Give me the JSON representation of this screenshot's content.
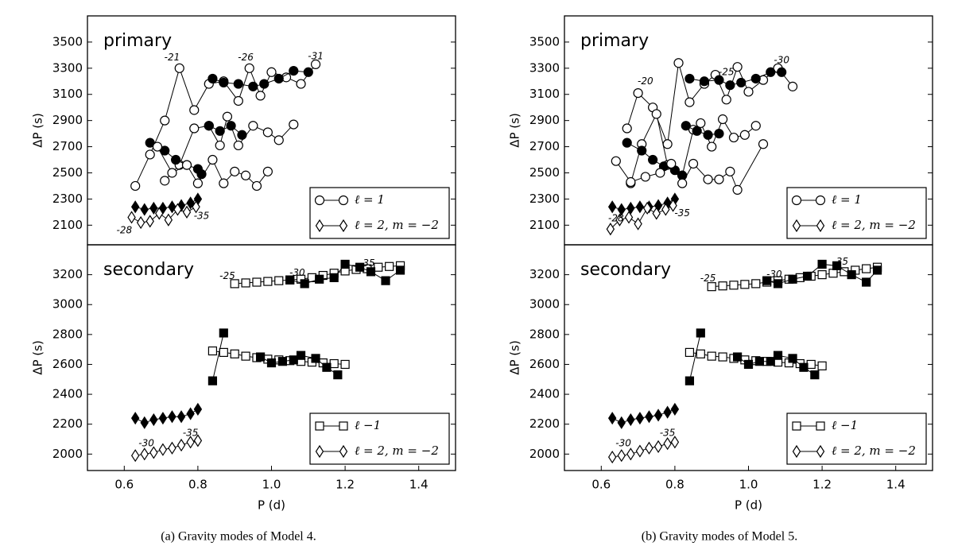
{
  "captions": [
    "(a) Gravity modes of Model 4.",
    "(b) Gravity modes of Model 5."
  ],
  "chart_data": [
    {
      "type": "line",
      "title": "primary",
      "ylabel": "ΔP (s)",
      "xlim": [
        0.5,
        1.5
      ],
      "ylim": [
        1950,
        3700
      ],
      "yticks": [
        2100,
        2300,
        2500,
        2700,
        2900,
        3100,
        3300,
        3500
      ],
      "legend": {
        "corner": "lower right",
        "entries": [
          {
            "label": "ℓ = 1",
            "marker": "circle"
          },
          {
            "label": "ℓ = 2, m = −2",
            "marker": "diamond"
          }
        ]
      },
      "series": [
        {
          "marker": "circle",
          "filled": false,
          "color": "#000",
          "x": [
            0.63,
            0.67,
            0.71,
            0.75,
            0.79,
            0.83,
            0.87,
            0.91,
            0.94,
            0.97,
            1.0,
            1.04,
            1.08,
            1.12
          ],
          "values": [
            2400,
            2640,
            2900,
            3300,
            2980,
            3180,
            3200,
            3050,
            3300,
            3090,
            3270,
            3230,
            3180,
            3330
          ]
        },
        {
          "marker": "circle",
          "filled": true,
          "color": "#000",
          "x": [
            0.84,
            0.87,
            0.91,
            0.95,
            0.98,
            1.02,
            1.06,
            1.1
          ],
          "values": [
            3220,
            3190,
            3180,
            3160,
            3180,
            3220,
            3280,
            3270
          ]
        },
        {
          "marker": "circle",
          "filled": false,
          "color": "#000",
          "x": [
            0.71,
            0.75,
            0.79,
            0.83,
            0.86,
            0.88,
            0.91,
            0.95,
            0.99,
            1.02,
            1.06
          ],
          "values": [
            2440,
            2560,
            2840,
            2860,
            2710,
            2930,
            2710,
            2860,
            2810,
            2750,
            2870
          ]
        },
        {
          "marker": "circle",
          "filled": true,
          "color": "#000",
          "x": [
            0.67,
            0.71,
            0.74,
            0.77,
            0.8,
            0.81
          ],
          "values": [
            2730,
            2670,
            2600,
            2560,
            2530,
            2490
          ]
        },
        {
          "marker": "circle",
          "filled": true,
          "color": "#000",
          "x": [
            0.83,
            0.86,
            0.89,
            0.92
          ],
          "values": [
            2860,
            2820,
            2860,
            2790
          ]
        },
        {
          "marker": "circle",
          "filled": false,
          "color": "#000",
          "x": [
            0.69,
            0.73,
            0.77,
            0.8,
            0.84,
            0.87,
            0.9,
            0.93,
            0.96,
            0.99
          ],
          "values": [
            2700,
            2500,
            2560,
            2420,
            2600,
            2420,
            2510,
            2480,
            2400,
            2510
          ]
        },
        {
          "marker": "diamond",
          "filled": true,
          "color": "#000",
          "x": [
            0.63,
            0.655,
            0.68,
            0.705,
            0.73,
            0.755,
            0.78,
            0.8
          ],
          "values": [
            2240,
            2220,
            2230,
            2230,
            2240,
            2250,
            2270,
            2300
          ]
        },
        {
          "marker": "diamond",
          "filled": false,
          "color": "#000",
          "x": [
            0.62,
            0.645,
            0.67,
            0.695,
            0.72,
            0.745,
            0.77,
            0.795
          ],
          "values": [
            2160,
            2120,
            2130,
            2190,
            2140,
            2220,
            2200,
            2240
          ]
        }
      ],
      "annotations": [
        {
          "text": "-21",
          "x": 0.73,
          "y": 3380
        },
        {
          "text": "-26",
          "x": 0.93,
          "y": 3380
        },
        {
          "text": "-31",
          "x": 1.12,
          "y": 3390
        },
        {
          "text": "-28",
          "x": 0.6,
          "y": 2060
        },
        {
          "text": "-35",
          "x": 0.81,
          "y": 2170
        }
      ]
    },
    {
      "type": "line",
      "title": "secondary",
      "ylabel": "ΔP (s)",
      "xlabel": "P (d)",
      "xlim": [
        0.5,
        1.5
      ],
      "ylim": [
        1890,
        3400
      ],
      "xticks": [
        0.6,
        0.8,
        {
          "value": 1,
          "label": "1.0"
        },
        1.2,
        1.4
      ],
      "yticks": [
        2000,
        2200,
        2400,
        2600,
        2800,
        3000,
        3200
      ],
      "legend": {
        "corner": "lower right",
        "entries": [
          {
            "label": "ℓ −1",
            "marker": "square"
          },
          {
            "label": "ℓ = 2, m = −2",
            "marker": "diamond"
          }
        ]
      },
      "series": [
        {
          "marker": "square",
          "filled": false,
          "color": "#000",
          "x": [
            0.9,
            0.93,
            0.96,
            0.99,
            1.02,
            1.05,
            1.08,
            1.11,
            1.14,
            1.17,
            1.2,
            1.23,
            1.26,
            1.29,
            1.32,
            1.35
          ],
          "values": [
            3140,
            3145,
            3150,
            3155,
            3160,
            3165,
            3170,
            3180,
            3195,
            3210,
            3225,
            3235,
            3240,
            3250,
            3255,
            3260
          ]
        },
        {
          "marker": "square",
          "filled": true,
          "color": "#000",
          "x": [
            1.05,
            1.09,
            1.13,
            1.17,
            1.2,
            1.24,
            1.27,
            1.31,
            1.35
          ],
          "values": [
            3165,
            3140,
            3170,
            3180,
            3270,
            3250,
            3220,
            3160,
            3230
          ]
        },
        {
          "marker": "square",
          "filled": false,
          "color": "#000",
          "x": [
            0.84,
            0.87,
            0.9,
            0.93,
            0.96,
            0.99,
            1.02,
            1.05,
            1.08,
            1.11,
            1.14,
            1.17,
            1.2
          ],
          "values": [
            2690,
            2680,
            2670,
            2655,
            2645,
            2635,
            2630,
            2625,
            2620,
            2615,
            2610,
            2605,
            2600
          ]
        },
        {
          "marker": "square",
          "filled": true,
          "color": "#000",
          "x": [
            0.84,
            0.87
          ],
          "values": [
            2490,
            2810
          ]
        },
        {
          "marker": "square",
          "filled": true,
          "color": "#000",
          "x": [
            0.97,
            1.0,
            1.03,
            1.06,
            1.08,
            1.12,
            1.15,
            1.18
          ],
          "values": [
            2650,
            2610,
            2620,
            2630,
            2660,
            2640,
            2580,
            2530
          ]
        },
        {
          "marker": "diamond",
          "filled": true,
          "color": "#000",
          "x": [
            0.63,
            0.655,
            0.68,
            0.705,
            0.73,
            0.755,
            0.78,
            0.8
          ],
          "values": [
            2240,
            2210,
            2230,
            2240,
            2250,
            2250,
            2270,
            2300
          ]
        },
        {
          "marker": "diamond",
          "filled": false,
          "color": "#000",
          "x": [
            0.63,
            0.655,
            0.68,
            0.705,
            0.73,
            0.755,
            0.78,
            0.8
          ],
          "values": [
            1990,
            2000,
            2010,
            2030,
            2040,
            2060,
            2080,
            2090
          ]
        }
      ],
      "annotations": [
        {
          "text": "-25",
          "x": 0.88,
          "y": 3190
        },
        {
          "text": "-30",
          "x": 1.07,
          "y": 3210
        },
        {
          "text": "-35",
          "x": 1.26,
          "y": 3275
        },
        {
          "text": "-30",
          "x": 0.66,
          "y": 2070
        },
        {
          "text": "-35",
          "x": 0.78,
          "y": 2140
        }
      ]
    },
    {
      "type": "line",
      "title": "primary",
      "ylabel": "ΔP (s)",
      "xlim": [
        0.5,
        1.5
      ],
      "ylim": [
        1950,
        3700
      ],
      "yticks": [
        2100,
        2300,
        2500,
        2700,
        2900,
        3100,
        3300,
        3500
      ],
      "legend": {
        "corner": "lower right",
        "entries": [
          {
            "label": "ℓ = 1",
            "marker": "circle"
          },
          {
            "label": "ℓ = 2, m = −2",
            "marker": "diamond"
          }
        ]
      },
      "series": [
        {
          "marker": "circle",
          "filled": false,
          "color": "#000",
          "x": [
            0.67,
            0.7,
            0.74,
            0.78,
            0.81,
            0.84,
            0.88,
            0.91,
            0.94,
            0.97,
            1.0,
            1.04,
            1.08,
            1.12
          ],
          "values": [
            2840,
            3110,
            3000,
            2720,
            3340,
            3040,
            3180,
            3250,
            3060,
            3310,
            3120,
            3210,
            3300,
            3160
          ]
        },
        {
          "marker": "circle",
          "filled": true,
          "color": "#000",
          "x": [
            0.84,
            0.88,
            0.92,
            0.95,
            0.98,
            1.02,
            1.06,
            1.09
          ],
          "values": [
            3220,
            3200,
            3210,
            3170,
            3190,
            3220,
            3270,
            3270
          ]
        },
        {
          "marker": "circle",
          "filled": false,
          "color": "#000",
          "x": [
            0.68,
            0.71,
            0.75,
            0.78,
            0.82,
            0.85,
            0.87,
            0.9,
            0.93,
            0.96,
            0.99,
            1.02
          ],
          "values": [
            2420,
            2720,
            2950,
            2560,
            2480,
            2830,
            2880,
            2700,
            2910,
            2770,
            2790,
            2860
          ]
        },
        {
          "marker": "circle",
          "filled": true,
          "color": "#000",
          "x": [
            0.67,
            0.71,
            0.74,
            0.77,
            0.8,
            0.82
          ],
          "values": [
            2730,
            2670,
            2600,
            2550,
            2520,
            2480
          ]
        },
        {
          "marker": "circle",
          "filled": true,
          "color": "#000",
          "x": [
            0.83,
            0.86,
            0.89,
            0.92
          ],
          "values": [
            2860,
            2820,
            2790,
            2800
          ]
        },
        {
          "marker": "circle",
          "filled": false,
          "color": "#000",
          "x": [
            0.64,
            0.68,
            0.72,
            0.76,
            0.79,
            0.82,
            0.85,
            0.89,
            0.92,
            0.95,
            0.97,
            1.04
          ],
          "values": [
            2590,
            2430,
            2470,
            2500,
            2570,
            2420,
            2570,
            2450,
            2450,
            2510,
            2370,
            2720
          ]
        },
        {
          "marker": "diamond",
          "filled": true,
          "color": "#000",
          "x": [
            0.63,
            0.655,
            0.68,
            0.705,
            0.73,
            0.755,
            0.78,
            0.8
          ],
          "values": [
            2240,
            2220,
            2230,
            2240,
            2240,
            2250,
            2270,
            2300
          ]
        },
        {
          "marker": "diamond",
          "filled": false,
          "color": "#000",
          "x": [
            0.625,
            0.65,
            0.675,
            0.7,
            0.725,
            0.75,
            0.775,
            0.795
          ],
          "values": [
            2070,
            2140,
            2160,
            2110,
            2230,
            2190,
            2220,
            2250
          ]
        }
      ],
      "annotations": [
        {
          "text": "-20",
          "x": 0.72,
          "y": 3200
        },
        {
          "text": "-25",
          "x": 0.94,
          "y": 3270
        },
        {
          "text": "-30",
          "x": 1.09,
          "y": 3360
        },
        {
          "text": "-28",
          "x": 0.64,
          "y": 2150
        },
        {
          "text": "-35",
          "x": 0.82,
          "y": 2190
        }
      ]
    },
    {
      "type": "line",
      "title": "secondary",
      "ylabel": "ΔP (s)",
      "xlabel": "P (d)",
      "xlim": [
        0.5,
        1.5
      ],
      "ylim": [
        1890,
        3400
      ],
      "xticks": [
        0.6,
        0.8,
        {
          "value": 1,
          "label": "1.0"
        },
        1.2,
        1.4
      ],
      "yticks": [
        2000,
        2200,
        2400,
        2600,
        2800,
        3000,
        3200
      ],
      "legend": {
        "corner": "lower right",
        "entries": [
          {
            "label": "ℓ −1",
            "marker": "square"
          },
          {
            "label": "ℓ = 2, m = −2",
            "marker": "diamond"
          }
        ]
      },
      "series": [
        {
          "marker": "square",
          "filled": false,
          "color": "#000",
          "x": [
            0.9,
            0.93,
            0.96,
            0.99,
            1.02,
            1.05,
            1.08,
            1.11,
            1.14,
            1.17,
            1.2,
            1.23,
            1.26,
            1.29,
            1.32,
            1.35
          ],
          "values": [
            3120,
            3125,
            3130,
            3135,
            3140,
            3150,
            3160,
            3170,
            3180,
            3190,
            3200,
            3210,
            3220,
            3230,
            3240,
            3250
          ]
        },
        {
          "marker": "square",
          "filled": true,
          "color": "#000",
          "x": [
            1.05,
            1.08,
            1.12,
            1.16,
            1.2,
            1.24,
            1.28,
            1.32,
            1.35
          ],
          "values": [
            3160,
            3140,
            3170,
            3190,
            3270,
            3260,
            3200,
            3150,
            3230
          ]
        },
        {
          "marker": "square",
          "filled": false,
          "color": "#000",
          "x": [
            0.84,
            0.87,
            0.9,
            0.93,
            0.96,
            0.99,
            1.02,
            1.05,
            1.08,
            1.11,
            1.14,
            1.17,
            1.2
          ],
          "values": [
            2680,
            2670,
            2655,
            2650,
            2640,
            2630,
            2625,
            2620,
            2615,
            2610,
            2605,
            2600,
            2590
          ]
        },
        {
          "marker": "square",
          "filled": true,
          "color": "#000",
          "x": [
            0.84,
            0.87
          ],
          "values": [
            2490,
            2810
          ]
        },
        {
          "marker": "square",
          "filled": true,
          "color": "#000",
          "x": [
            0.97,
            1.0,
            1.03,
            1.06,
            1.08,
            1.12,
            1.15,
            1.18
          ],
          "values": [
            2650,
            2600,
            2620,
            2620,
            2660,
            2640,
            2580,
            2530
          ]
        },
        {
          "marker": "diamond",
          "filled": true,
          "color": "#000",
          "x": [
            0.63,
            0.655,
            0.68,
            0.705,
            0.73,
            0.755,
            0.78,
            0.8
          ],
          "values": [
            2240,
            2210,
            2230,
            2240,
            2250,
            2260,
            2280,
            2300
          ]
        },
        {
          "marker": "diamond",
          "filled": false,
          "color": "#000",
          "x": [
            0.63,
            0.655,
            0.68,
            0.705,
            0.73,
            0.755,
            0.78,
            0.8
          ],
          "values": [
            1980,
            1990,
            2000,
            2020,
            2040,
            2050,
            2070,
            2080
          ]
        }
      ],
      "annotations": [
        {
          "text": "-25",
          "x": 0.89,
          "y": 3175
        },
        {
          "text": "-30",
          "x": 1.07,
          "y": 3200
        },
        {
          "text": "-35",
          "x": 1.25,
          "y": 3285
        },
        {
          "text": "-30",
          "x": 0.66,
          "y": 2070
        },
        {
          "text": "-35",
          "x": 0.78,
          "y": 2140
        }
      ]
    }
  ]
}
